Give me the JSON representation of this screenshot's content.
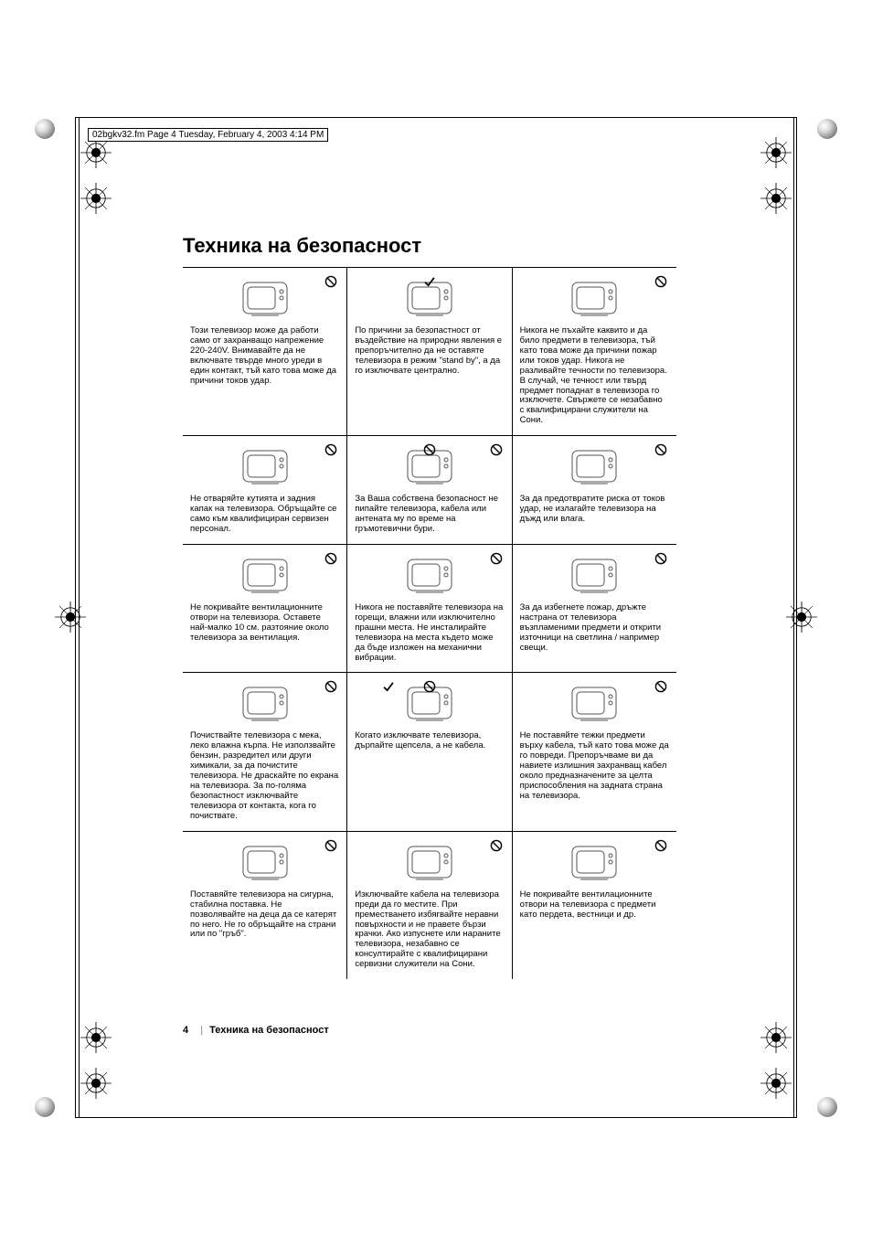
{
  "header": "02bgkv32.fm  Page 4  Tuesday, February 4, 2003  4:14 PM",
  "title": "Техника на безопасност",
  "footer": {
    "page": "4",
    "title": "Техника на безопасност"
  },
  "marks": {
    "prohibit": "prohibit",
    "check": "check"
  },
  "cells": [
    [
      {
        "marks": [
          "prohibit"
        ],
        "text": "Този телевизор може да работи само от захранващо напрежение 220-240V. Внимавайте да не включвате твърде много уреди в един контакт, тъй като това може да причини токов удар."
      },
      {
        "marks": [
          "check"
        ],
        "text": "По причини за безопастност от въздействие на природни явления е препоръчително да не оставяте телевизора в режим \"stand by\", а да го изключвате централно."
      },
      {
        "marks": [
          "prohibit"
        ],
        "text": "Никога не пъхайте каквито и да било предмети в телевизора, тъй като това може да причини пожар или токов удар. Никога не разливайте течности по телевизора. В случай, че течност или твърд предмет попаднат в телевизора го изключете. Свържете се незабавно с квалифицирани служители на Сони."
      }
    ],
    [
      {
        "marks": [
          "prohibit"
        ],
        "text": "Не отваряйте кутията и задния капак на телевизора. Обръщайте се само към квалифициран сервизен персонал."
      },
      {
        "marks": [
          "prohibit",
          "prohibit2"
        ],
        "text": "За Ваша собствена безопасност не пипайте телевизора, кабела или антената му по време на гръмотевични бури."
      },
      {
        "marks": [
          "prohibit"
        ],
        "text": "За да предотвратите риска от токов удар, не излагайте телевизора на дъжд или влага."
      }
    ],
    [
      {
        "marks": [
          "prohibit"
        ],
        "text": "Не покривайте вентилационните отвори на телевизора. Оставете най-малко 10 см. разтояние около телевизора за вентилация."
      },
      {
        "marks": [
          "prohibit"
        ],
        "text": "Никога не  поставяйте телевизора на горещи, влажни или изключително прашни места. Не инсталирайте телевизора на места където може да бъде изложен на механични вибрации."
      },
      {
        "marks": [
          "prohibit"
        ],
        "text": "За да избегнете пожар, дръжте настрана от телевизора възпламеними предмети и открити източници на светлина / например свещи."
      }
    ],
    [
      {
        "marks": [
          "prohibit"
        ],
        "text": "Почиствайте телевизора с мека, леко влажна кърпа. Не използвайте бензин, разредител или други химикали, за да почистите телевизора. Не драскайте по екрана на телевизора. За по-голяма безопастност изключвайте телевизора от контакта, кога го почиствате."
      },
      {
        "marks": [
          "check",
          "prohibit2"
        ],
        "text": "Когато изключвате телевизора, дърпайте щепсела, а не кабела."
      },
      {
        "marks": [
          "prohibit"
        ],
        "text": "Не поставяйте тежки предмети върху кабела, тъй като това може да го повреди. Препоръчваме ви да навиете излишния захранващ кабел около предназначените за целта приспособления на задната страна на телевизора."
      }
    ],
    [
      {
        "marks": [
          "prohibit"
        ],
        "text": "Поставяйте телевизора на сигурна, стабилна поставка. Не позволявайте на деца да се катерят по него. Не го обръщайте на страни или по \"гръб\"."
      },
      {
        "marks": [
          "prohibit"
        ],
        "text": "Изключвайте кабела на телевизора преди да го местите. При преместването избягвайте неравни повърхности и не правете бързи крачки. Ако изпуснете или нараните телевизора, незабавно се консултирайте с квалифицирани сервизни служители на Сони."
      },
      {
        "marks": [
          "prohibit"
        ],
        "text": "Не покривайте вентилационните отвори на телевизора с предмети  като пердета, вестници и др."
      }
    ]
  ]
}
